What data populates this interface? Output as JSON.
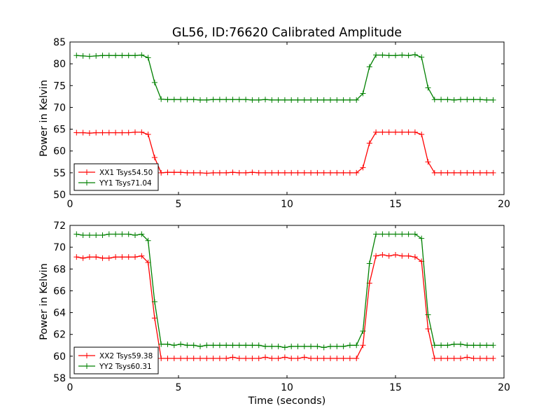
{
  "title": "GL56, ID:76620 Calibrated Amplitude",
  "chart_data": [
    {
      "type": "line",
      "ylabel": "Power in Kelvin",
      "xlabel": "",
      "xlim": [
        0,
        20
      ],
      "ylim": [
        50,
        85
      ],
      "xticks": [
        "0",
        "5",
        "10",
        "15",
        "20"
      ],
      "yticks": [
        "50",
        "55",
        "60",
        "65",
        "70",
        "75",
        "80",
        "85"
      ],
      "grid": false,
      "legend_position": "lower-left",
      "series": [
        {
          "name": "XX1 Tsys54.50",
          "color": "#ff0000",
          "x": [
            0.3,
            0.6,
            0.9,
            1.2,
            1.5,
            1.8,
            2.1,
            2.4,
            2.7,
            3.0,
            3.3,
            3.6,
            3.9,
            4.2,
            4.5,
            4.8,
            5.1,
            5.4,
            5.7,
            6.0,
            6.3,
            6.6,
            6.9,
            7.2,
            7.5,
            7.8,
            8.1,
            8.4,
            8.7,
            9.0,
            9.3,
            9.6,
            9.9,
            10.2,
            10.5,
            10.8,
            11.1,
            11.4,
            11.7,
            12.0,
            12.3,
            12.6,
            12.9,
            13.2,
            13.5,
            13.8,
            14.1,
            14.4,
            14.7,
            15.0,
            15.3,
            15.6,
            15.9,
            16.2,
            16.5,
            16.8,
            17.1,
            17.4,
            17.7,
            18.0,
            18.3,
            18.6,
            18.9,
            19.2,
            19.5
          ],
          "y": [
            64.2,
            64.2,
            64.1,
            64.2,
            64.2,
            64.2,
            64.2,
            64.2,
            64.2,
            64.3,
            64.3,
            63.8,
            58.5,
            55.0,
            55.1,
            55.1,
            55.1,
            55.0,
            55.0,
            55.0,
            54.9,
            55.0,
            55.0,
            55.0,
            55.1,
            55.0,
            55.0,
            55.1,
            55.0,
            55.0,
            55.0,
            55.0,
            55.0,
            55.0,
            55.0,
            55.0,
            55.0,
            55.0,
            55.0,
            55.0,
            55.0,
            55.0,
            55.0,
            55.0,
            56.2,
            61.8,
            64.3,
            64.3,
            64.3,
            64.3,
            64.3,
            64.3,
            64.3,
            63.8,
            57.5,
            55.0,
            55.0,
            55.0,
            55.0,
            55.0,
            55.0,
            55.0,
            55.0,
            55.0,
            55.0
          ]
        },
        {
          "name": "YY1 Tsys71.04",
          "color": "#008000",
          "x": [
            0.3,
            0.6,
            0.9,
            1.2,
            1.5,
            1.8,
            2.1,
            2.4,
            2.7,
            3.0,
            3.3,
            3.6,
            3.9,
            4.2,
            4.5,
            4.8,
            5.1,
            5.4,
            5.7,
            6.0,
            6.3,
            6.6,
            6.9,
            7.2,
            7.5,
            7.8,
            8.1,
            8.4,
            8.7,
            9.0,
            9.3,
            9.6,
            9.9,
            10.2,
            10.5,
            10.8,
            11.1,
            11.4,
            11.7,
            12.0,
            12.3,
            12.6,
            12.9,
            13.2,
            13.5,
            13.8,
            14.1,
            14.4,
            14.7,
            15.0,
            15.3,
            15.6,
            15.9,
            16.2,
            16.5,
            16.8,
            17.1,
            17.4,
            17.7,
            18.0,
            18.3,
            18.6,
            18.9,
            19.2,
            19.5
          ],
          "y": [
            81.9,
            81.8,
            81.7,
            81.8,
            81.9,
            81.9,
            81.9,
            81.9,
            81.9,
            81.9,
            82.0,
            81.4,
            75.7,
            71.9,
            71.8,
            71.8,
            71.8,
            71.8,
            71.8,
            71.7,
            71.7,
            71.8,
            71.8,
            71.8,
            71.8,
            71.8,
            71.8,
            71.7,
            71.7,
            71.8,
            71.7,
            71.7,
            71.7,
            71.7,
            71.7,
            71.7,
            71.7,
            71.7,
            71.7,
            71.7,
            71.7,
            71.7,
            71.7,
            71.7,
            73.2,
            79.3,
            82.0,
            82.0,
            81.9,
            81.9,
            82.0,
            81.9,
            82.1,
            81.5,
            74.5,
            71.8,
            71.8,
            71.8,
            71.7,
            71.8,
            71.8,
            71.8,
            71.8,
            71.7,
            71.7
          ]
        }
      ]
    },
    {
      "type": "line",
      "ylabel": "Power in Kelvin",
      "xlabel": "Time (seconds)",
      "xlim": [
        0,
        20
      ],
      "ylim": [
        58,
        72
      ],
      "xticks": [
        "0",
        "5",
        "10",
        "15",
        "20"
      ],
      "yticks": [
        "58",
        "60",
        "62",
        "64",
        "66",
        "68",
        "70",
        "72"
      ],
      "grid": false,
      "legend_position": "lower-left",
      "series": [
        {
          "name": "XX2 Tsys59.38",
          "color": "#ff0000",
          "x": [
            0.3,
            0.6,
            0.9,
            1.2,
            1.5,
            1.8,
            2.1,
            2.4,
            2.7,
            3.0,
            3.3,
            3.6,
            3.9,
            4.2,
            4.5,
            4.8,
            5.1,
            5.4,
            5.7,
            6.0,
            6.3,
            6.6,
            6.9,
            7.2,
            7.5,
            7.8,
            8.1,
            8.4,
            8.7,
            9.0,
            9.3,
            9.6,
            9.9,
            10.2,
            10.5,
            10.8,
            11.1,
            11.4,
            11.7,
            12.0,
            12.3,
            12.6,
            12.9,
            13.2,
            13.5,
            13.8,
            14.1,
            14.4,
            14.7,
            15.0,
            15.3,
            15.6,
            15.9,
            16.2,
            16.5,
            16.8,
            17.1,
            17.4,
            17.7,
            18.0,
            18.3,
            18.6,
            18.9,
            19.2,
            19.5
          ],
          "y": [
            69.1,
            69.0,
            69.1,
            69.1,
            69.0,
            69.0,
            69.1,
            69.1,
            69.1,
            69.1,
            69.2,
            68.6,
            63.5,
            59.8,
            59.8,
            59.8,
            59.8,
            59.8,
            59.8,
            59.8,
            59.8,
            59.8,
            59.8,
            59.8,
            59.9,
            59.8,
            59.8,
            59.8,
            59.8,
            59.9,
            59.8,
            59.8,
            59.9,
            59.8,
            59.8,
            59.9,
            59.8,
            59.8,
            59.8,
            59.8,
            59.8,
            59.8,
            59.8,
            59.8,
            61.0,
            66.7,
            69.2,
            69.3,
            69.2,
            69.3,
            69.2,
            69.2,
            69.1,
            68.7,
            62.5,
            59.8,
            59.8,
            59.8,
            59.8,
            59.8,
            59.9,
            59.8,
            59.8,
            59.8,
            59.8
          ]
        },
        {
          "name": "YY2 Tsys60.31",
          "color": "#008000",
          "x": [
            0.3,
            0.6,
            0.9,
            1.2,
            1.5,
            1.8,
            2.1,
            2.4,
            2.7,
            3.0,
            3.3,
            3.6,
            3.9,
            4.2,
            4.5,
            4.8,
            5.1,
            5.4,
            5.7,
            6.0,
            6.3,
            6.6,
            6.9,
            7.2,
            7.5,
            7.8,
            8.1,
            8.4,
            8.7,
            9.0,
            9.3,
            9.6,
            9.9,
            10.2,
            10.5,
            10.8,
            11.1,
            11.4,
            11.7,
            12.0,
            12.3,
            12.6,
            12.9,
            13.2,
            13.5,
            13.8,
            14.1,
            14.4,
            14.7,
            15.0,
            15.3,
            15.6,
            15.9,
            16.2,
            16.5,
            16.8,
            17.1,
            17.4,
            17.7,
            18.0,
            18.3,
            18.6,
            18.9,
            19.2,
            19.5
          ],
          "y": [
            71.2,
            71.1,
            71.1,
            71.1,
            71.1,
            71.2,
            71.2,
            71.2,
            71.2,
            71.1,
            71.2,
            70.6,
            65.0,
            61.1,
            61.1,
            61.0,
            61.1,
            61.0,
            61.0,
            60.9,
            61.0,
            61.0,
            61.0,
            61.0,
            61.0,
            61.0,
            61.0,
            61.0,
            61.0,
            60.9,
            60.9,
            60.9,
            60.8,
            60.9,
            60.9,
            60.9,
            60.9,
            60.9,
            60.8,
            60.9,
            60.9,
            60.9,
            61.0,
            61.0,
            62.3,
            68.5,
            71.2,
            71.2,
            71.2,
            71.2,
            71.2,
            71.2,
            71.2,
            70.8,
            63.8,
            61.0,
            61.0,
            61.0,
            61.1,
            61.1,
            61.0,
            61.0,
            61.0,
            61.0,
            61.0
          ]
        }
      ]
    }
  ]
}
